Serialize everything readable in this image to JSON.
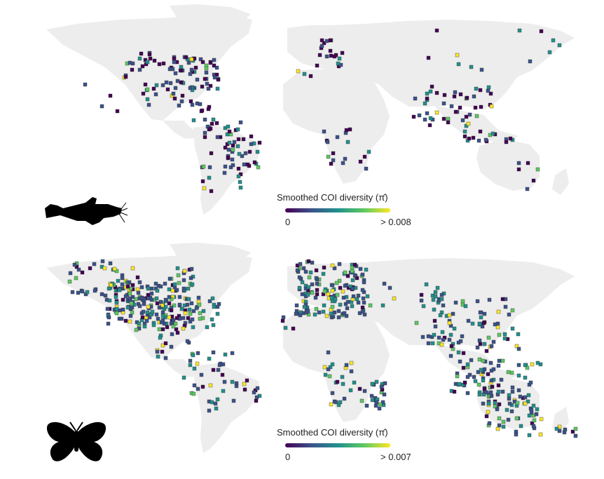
{
  "colors": {
    "land": "#ededed",
    "scale": [
      "#440154",
      "#3b528b",
      "#21918c",
      "#5ec962",
      "#fde725"
    ],
    "silhouette": "#000000"
  },
  "panels": [
    {
      "id": "fish",
      "icon": "catfish-silhouette",
      "legend": {
        "title": "Smoothed COI diversity (",
        "symbol": "π̂",
        "close": ")",
        "min": "0",
        "max": "> 0.008"
      }
    },
    {
      "id": "butterfly",
      "icon": "butterfly-silhouette",
      "legend": {
        "title": "Smoothed COI diversity (",
        "symbol": "π̂",
        "close": ")",
        "min": "0",
        "max": "> 0.007"
      }
    }
  ]
}
